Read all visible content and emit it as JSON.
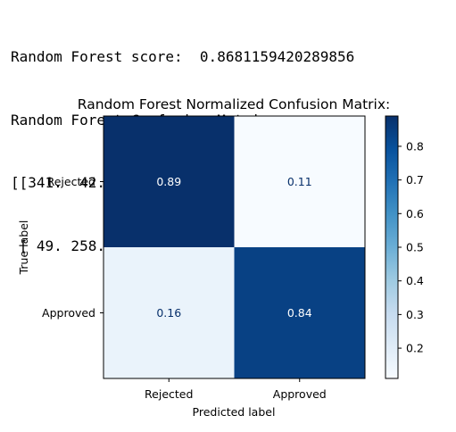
{
  "console_output": [
    "Random Forest score:  0.8681159420289856",
    "Random Forest Confusion Matrix",
    "[[341.  42.]",
    " [ 49. 258.]]"
  ],
  "chart_data": {
    "type": "heatmap",
    "title": "Random Forest Normalized Confusion Matrix:",
    "xlabel": "Predicted label",
    "ylabel": "True label",
    "x_categories": [
      "Rejected",
      "Approved"
    ],
    "y_categories": [
      "Rejected",
      "Approved"
    ],
    "values": [
      [
        0.89,
        0.11
      ],
      [
        0.16,
        0.84
      ]
    ],
    "value_labels": [
      [
        "0.89",
        "0.11"
      ],
      [
        "0.16",
        "0.84"
      ]
    ],
    "colormap": "Blues",
    "colorbar": {
      "range": [
        0.11,
        0.89
      ],
      "ticks": [
        0.2,
        0.3,
        0.4,
        0.5,
        0.6,
        0.7,
        0.8
      ],
      "tick_labels": [
        "0.2",
        "0.3",
        "0.4",
        "0.5",
        "0.6",
        "0.7",
        "0.8"
      ]
    },
    "colors": {
      "blues_stops": [
        "#f7fbff",
        "#deebf7",
        "#c6dbef",
        "#9ecae1",
        "#6baed6",
        "#4292c6",
        "#2171b5",
        "#08519c",
        "#08306b"
      ],
      "text_on_dark": "#ffffff",
      "text_on_light": "#08306b"
    }
  }
}
